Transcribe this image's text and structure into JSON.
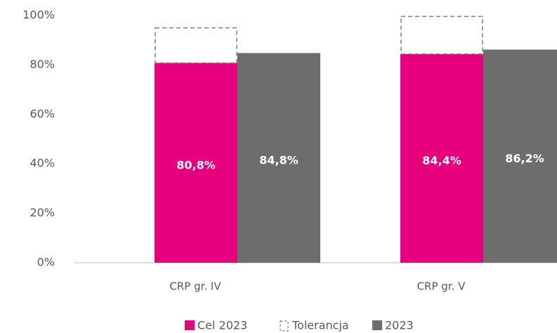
{
  "chart_data": {
    "type": "bar",
    "categories": [
      "CRP gr. IV",
      "CRP gr. V"
    ],
    "series": [
      {
        "name": "Cel 2023",
        "color": "#e6007e",
        "values": [
          80.8,
          84.4
        ],
        "value_labels": [
          "80,8%",
          "84,4%"
        ]
      },
      {
        "name": "Tolerancja",
        "color": "#7f7f7f",
        "dashed": true,
        "values": [
          14.2,
          15.2
        ]
      },
      {
        "name": "2023",
        "color": "#6d6d6b",
        "values": [
          84.8,
          86.2
        ],
        "value_labels": [
          "84,8%",
          "86,2%"
        ]
      }
    ],
    "ylim": [
      0,
      100
    ],
    "yticks": [
      {
        "value": 0,
        "label": "0%"
      },
      {
        "value": 20,
        "label": "20%"
      },
      {
        "value": 40,
        "label": "40%"
      },
      {
        "value": 60,
        "label": "60%"
      },
      {
        "value": 80,
        "label": "80%"
      },
      {
        "value": 100,
        "label": "100%"
      }
    ],
    "grid": false,
    "legend": "bottom"
  }
}
